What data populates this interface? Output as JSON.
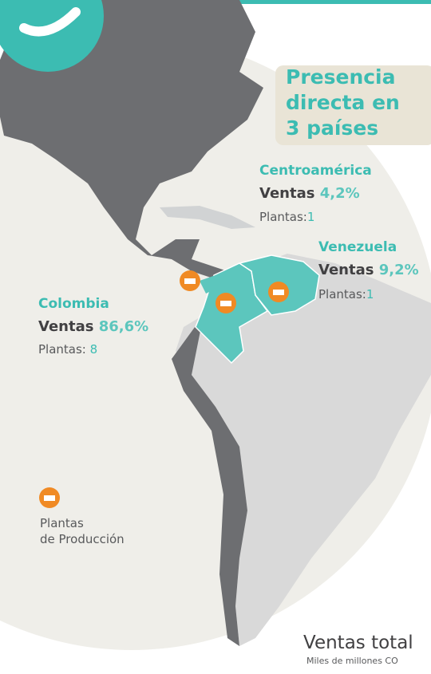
{
  "title": {
    "lines": [
      "Presencia",
      "directa en",
      "3 países"
    ]
  },
  "regions": [
    {
      "name": "Centroamérica",
      "sales_label": "Ventas",
      "sales": "4,2%",
      "plants_label": "Plantas:",
      "plants": "1"
    },
    {
      "name": "Venezuela",
      "sales_label": "Ventas",
      "sales": "9,2%",
      "plants_label": "Plantas:",
      "plants": "1"
    },
    {
      "name": "Colombia",
      "sales_label": "Ventas",
      "sales": "86,6%",
      "plants_label": "Plantas:",
      "plants": "8"
    }
  ],
  "legend": {
    "lines": [
      "Plantas",
      "de Producción"
    ]
  },
  "footer": {
    "title": "Ventas total",
    "subtitle": "Miles de millones CO"
  }
}
